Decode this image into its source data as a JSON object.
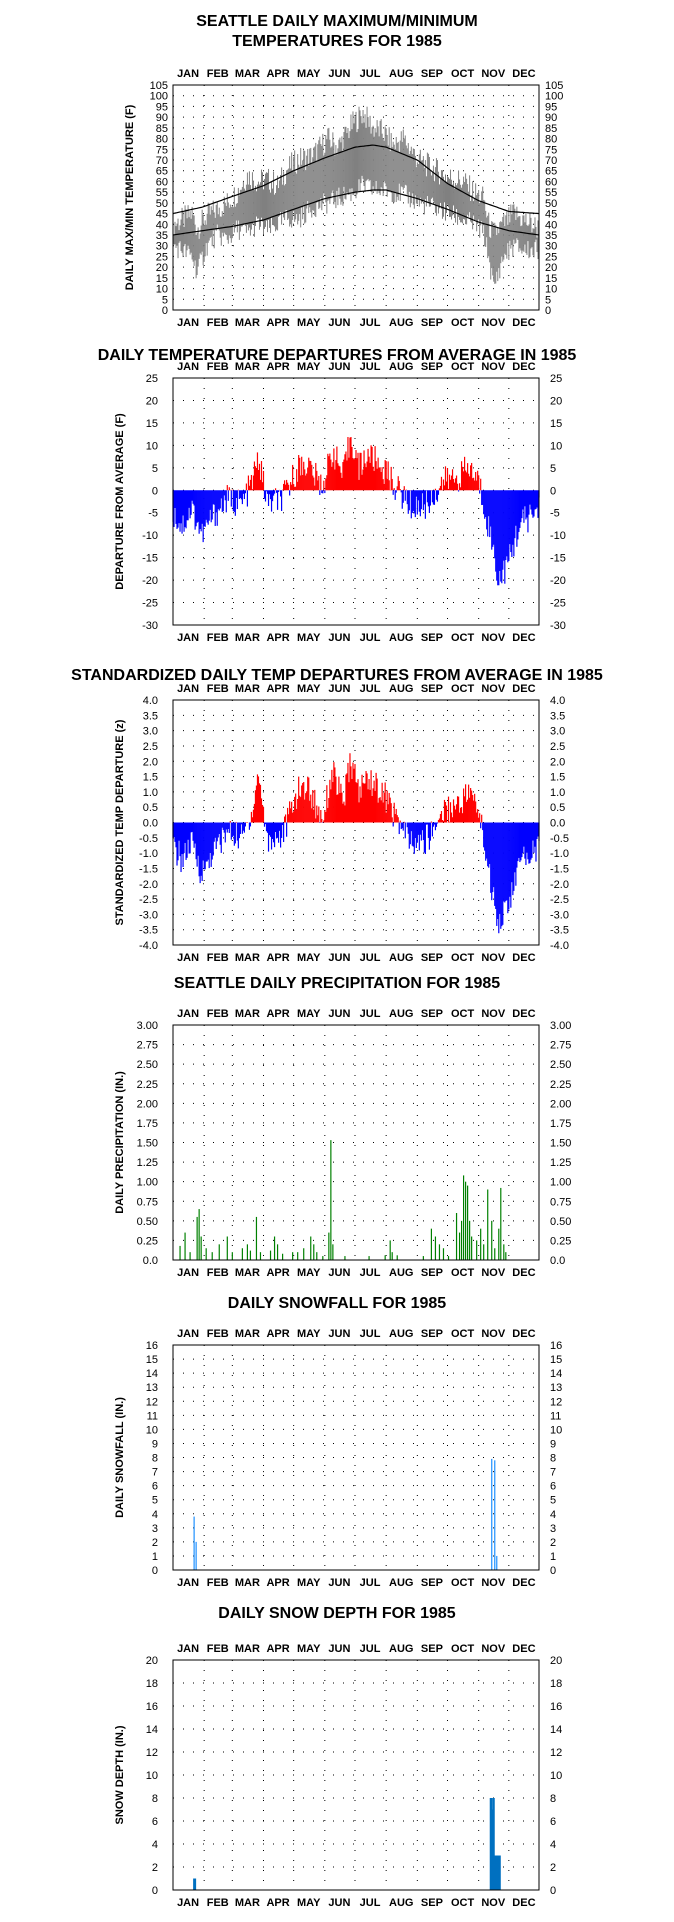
{
  "chart_data": [
    {
      "id": "maxmin",
      "type": "area",
      "title_lines": [
        "SEATTLE DAILY MAXIMUM/MINIMUM",
        "TEMPERATURES FOR 1985"
      ],
      "ylabel": "DAILY MAX/MIN TEMPERATURE (F)",
      "months": [
        "JAN",
        "FEB",
        "MAR",
        "APR",
        "MAY",
        "JUN",
        "JUL",
        "AUG",
        "SEP",
        "OCT",
        "NOV",
        "DEC"
      ],
      "ylim": [
        0,
        105
      ],
      "yticks": [
        "0",
        "5",
        "10",
        "15",
        "20",
        "25",
        "30",
        "35",
        "40",
        "45",
        "50",
        "55",
        "60",
        "65",
        "70",
        "75",
        "80",
        "85",
        "90",
        "95",
        "100",
        "105"
      ],
      "grid": true,
      "colors": {
        "observed": "#808080",
        "normal": "#000000"
      },
      "normal_max": {
        "day": [
          1,
          30,
          60,
          91,
          121,
          152,
          182,
          200,
          213,
          244,
          274,
          305,
          335,
          365
        ],
        "temp": [
          45,
          48,
          53,
          58,
          65,
          71,
          76,
          77,
          76,
          70,
          59,
          51,
          46,
          45
        ]
      },
      "normal_min": {
        "day": [
          1,
          30,
          60,
          91,
          121,
          152,
          182,
          200,
          213,
          244,
          274,
          305,
          335,
          365
        ],
        "temp": [
          35,
          37,
          39,
          42,
          47,
          52,
          55,
          56,
          56,
          52,
          47,
          41,
          37,
          35
        ]
      },
      "obs_max": {
        "day": [
          1,
          10,
          20,
          25,
          35,
          45,
          55,
          65,
          75,
          85,
          95,
          105,
          115,
          125,
          140,
          155,
          165,
          180,
          190,
          200,
          210,
          220,
          230,
          245,
          260,
          275,
          290,
          300,
          310,
          315,
          320,
          325,
          330,
          340,
          350,
          365
        ],
        "temp": [
          40,
          42,
          45,
          38,
          44,
          47,
          50,
          55,
          63,
          60,
          61,
          58,
          66,
          70,
          72,
          80,
          76,
          87,
          92,
          85,
          83,
          77,
          80,
          70,
          66,
          62,
          60,
          55,
          52,
          40,
          35,
          38,
          40,
          45,
          42,
          38
        ]
      },
      "obs_min": {
        "day": [
          1,
          10,
          20,
          25,
          35,
          45,
          55,
          65,
          75,
          85,
          95,
          105,
          115,
          125,
          140,
          155,
          165,
          180,
          190,
          200,
          210,
          220,
          230,
          245,
          260,
          275,
          290,
          300,
          310,
          315,
          320,
          325,
          330,
          340,
          350,
          365
        ],
        "temp": [
          30,
          28,
          25,
          18,
          30,
          35,
          33,
          38,
          36,
          40,
          37,
          40,
          43,
          42,
          48,
          50,
          52,
          55,
          58,
          56,
          56,
          55,
          54,
          50,
          48,
          45,
          42,
          40,
          36,
          25,
          10,
          18,
          25,
          30,
          28,
          28
        ]
      }
    },
    {
      "id": "departures",
      "type": "bar",
      "title_lines": [
        "DAILY TEMPERATURE DEPARTURES FROM AVERAGE IN 1985"
      ],
      "ylabel": "DEPARTURE FROM AVERAGE (F)",
      "months": [
        "JAN",
        "FEB",
        "MAR",
        "APR",
        "MAY",
        "JUN",
        "JUL",
        "AUG",
        "SEP",
        "OCT",
        "NOV",
        "DEC"
      ],
      "ylim": [
        -30,
        25
      ],
      "yticks": [
        "-30",
        "-25",
        "-20",
        "-15",
        "-10",
        "-5",
        "0",
        "5",
        "10",
        "15",
        "20",
        "25"
      ],
      "grid": true,
      "colors": {
        "positive": "#ff0000",
        "negative": "#0000ff"
      },
      "anchor_day": [
        1,
        10,
        20,
        30,
        40,
        55,
        70,
        80,
        86,
        95,
        110,
        125,
        135,
        145,
        150,
        160,
        170,
        178,
        186,
        195,
        205,
        213,
        225,
        240,
        255,
        270,
        285,
        295,
        305,
        315,
        320,
        325,
        335,
        345,
        355,
        365
      ],
      "anchor_value": [
        -5,
        -8,
        -4,
        -10,
        -6,
        -2,
        -3,
        2,
        7,
        -3,
        -2,
        5,
        6,
        2,
        1,
        9,
        3,
        12,
        5,
        8,
        6,
        4,
        0,
        -4,
        -3,
        2,
        3,
        5,
        2,
        -8,
        -14,
        -20,
        -16,
        -8,
        -6,
        -4
      ]
    },
    {
      "id": "std_departures",
      "type": "bar",
      "title_lines": [
        "STANDARDIZED DAILY TEMP DEPARTURES FROM AVERAGE IN 1985"
      ],
      "ylabel": "STANDARDIZED TEMP DEPARTURE (z)",
      "months": [
        "JAN",
        "FEB",
        "MAR",
        "APR",
        "MAY",
        "JUN",
        "JUL",
        "AUG",
        "SEP",
        "OCT",
        "NOV",
        "DEC"
      ],
      "ylim": [
        -4,
        4
      ],
      "yticks": [
        "-4.0",
        "-3.5",
        "-3.0",
        "-2.5",
        "-2.0",
        "-1.5",
        "-1.0",
        "-0.5",
        "0.0",
        "0.5",
        "1.0",
        "1.5",
        "2.0",
        "2.5",
        "3.0",
        "3.5",
        "4.0"
      ],
      "grid": true,
      "colors": {
        "positive": "#ff0000",
        "negative": "#0000ff"
      },
      "anchor_day": [
        1,
        10,
        20,
        30,
        40,
        55,
        70,
        80,
        86,
        95,
        110,
        125,
        135,
        145,
        150,
        160,
        170,
        178,
        186,
        195,
        205,
        213,
        225,
        240,
        255,
        270,
        285,
        295,
        305,
        315,
        320,
        325,
        335,
        345,
        355,
        365
      ],
      "anchor_value": [
        -0.8,
        -1.2,
        -0.7,
        -1.7,
        -1.0,
        -0.3,
        -0.5,
        0.4,
        1.6,
        -0.6,
        -0.4,
        1.0,
        1.2,
        0.4,
        0.2,
        1.7,
        0.6,
        2.0,
        1.0,
        1.5,
        1.1,
        0.8,
        0.0,
        -0.8,
        -0.5,
        0.4,
        0.6,
        1.0,
        0.4,
        -1.5,
        -2.5,
        -3.2,
        -2.7,
        -1.4,
        -1.0,
        -0.8
      ]
    },
    {
      "id": "precip",
      "type": "bar",
      "title_lines": [
        "SEATTLE DAILY PRECIPITATION FOR 1985"
      ],
      "ylabel": "DAILY PRECIPITATION (IN.)",
      "months": [
        "JAN",
        "FEB",
        "MAR",
        "APR",
        "MAY",
        "JUN",
        "JUL",
        "AUG",
        "SEP",
        "OCT",
        "NOV",
        "DEC"
      ],
      "ylim": [
        0,
        3
      ],
      "yticks": [
        "0.0",
        "0.25",
        "0.50",
        "0.75",
        "1.00",
        "1.25",
        "1.50",
        "1.75",
        "2.00",
        "2.25",
        "2.50",
        "2.75",
        "3.00"
      ],
      "grid": true,
      "colors": {
        "bars": "#008000"
      },
      "events": [
        {
          "day": 8,
          "value": 0.18
        },
        {
          "day": 13,
          "value": 0.35
        },
        {
          "day": 18,
          "value": 0.1
        },
        {
          "day": 25,
          "value": 0.55
        },
        {
          "day": 27,
          "value": 0.65
        },
        {
          "day": 29,
          "value": 0.3
        },
        {
          "day": 34,
          "value": 0.15
        },
        {
          "day": 40,
          "value": 0.1
        },
        {
          "day": 47,
          "value": 0.2
        },
        {
          "day": 55,
          "value": 0.3
        },
        {
          "day": 60,
          "value": 0.1
        },
        {
          "day": 70,
          "value": 0.15
        },
        {
          "day": 75,
          "value": 0.2
        },
        {
          "day": 78,
          "value": 0.12
        },
        {
          "day": 84,
          "value": 0.55
        },
        {
          "day": 88,
          "value": 0.1
        },
        {
          "day": 98,
          "value": 0.12
        },
        {
          "day": 102,
          "value": 0.3
        },
        {
          "day": 105,
          "value": 0.2
        },
        {
          "day": 110,
          "value": 0.08
        },
        {
          "day": 120,
          "value": 0.1
        },
        {
          "day": 125,
          "value": 0.1
        },
        {
          "day": 131,
          "value": 0.15
        },
        {
          "day": 138,
          "value": 0.3
        },
        {
          "day": 141,
          "value": 0.2
        },
        {
          "day": 144,
          "value": 0.1
        },
        {
          "day": 150,
          "value": 0.05
        },
        {
          "day": 156,
          "value": 0.35
        },
        {
          "day": 158,
          "value": 1.53
        },
        {
          "day": 160,
          "value": 0.2
        },
        {
          "day": 172,
          "value": 0.05
        },
        {
          "day": 196,
          "value": 0.05
        },
        {
          "day": 212,
          "value": 0.06
        },
        {
          "day": 217,
          "value": 0.25
        },
        {
          "day": 219,
          "value": 0.1
        },
        {
          "day": 224,
          "value": 0.06
        },
        {
          "day": 250,
          "value": 0.05
        },
        {
          "day": 258,
          "value": 0.4
        },
        {
          "day": 262,
          "value": 0.3
        },
        {
          "day": 266,
          "value": 0.2
        },
        {
          "day": 270,
          "value": 0.15
        },
        {
          "day": 275,
          "value": 0.05
        },
        {
          "day": 283,
          "value": 0.6
        },
        {
          "day": 286,
          "value": 0.35
        },
        {
          "day": 288,
          "value": 0.5
        },
        {
          "day": 290,
          "value": 1.08
        },
        {
          "day": 292,
          "value": 1.0
        },
        {
          "day": 294,
          "value": 0.95
        },
        {
          "day": 296,
          "value": 0.5
        },
        {
          "day": 298,
          "value": 0.3
        },
        {
          "day": 303,
          "value": 0.25
        },
        {
          "day": 307,
          "value": 0.4
        },
        {
          "day": 310,
          "value": 0.2
        },
        {
          "day": 314,
          "value": 0.9
        },
        {
          "day": 318,
          "value": 0.5
        },
        {
          "day": 321,
          "value": 0.15
        },
        {
          "day": 325,
          "value": 0.4
        },
        {
          "day": 327,
          "value": 0.92
        },
        {
          "day": 330,
          "value": 0.2
        },
        {
          "day": 332,
          "value": 0.1
        }
      ]
    },
    {
      "id": "snowfall",
      "type": "bar",
      "title_lines": [
        "DAILY SNOWFALL FOR 1985"
      ],
      "ylabel": "DAILY SNOWFALL (IN.)",
      "months": [
        "JAN",
        "FEB",
        "MAR",
        "APR",
        "MAY",
        "JUN",
        "JUL",
        "AUG",
        "SEP",
        "OCT",
        "NOV",
        "DEC"
      ],
      "ylim": [
        0,
        16
      ],
      "yticks": [
        "0",
        "1",
        "2",
        "3",
        "4",
        "5",
        "6",
        "7",
        "8",
        "9",
        "10",
        "11",
        "12",
        "13",
        "14",
        "15",
        "16"
      ],
      "grid": true,
      "colors": {
        "bars": "#1e90ff"
      },
      "events": [
        {
          "day": 22,
          "value": 3.8
        },
        {
          "day": 24,
          "value": 2.0
        },
        {
          "day": 318,
          "value": 7.9
        },
        {
          "day": 321,
          "value": 7.8
        },
        {
          "day": 323,
          "value": 1.0
        }
      ]
    },
    {
      "id": "snowdepth",
      "type": "bar",
      "title_lines": [
        "DAILY SNOW DEPTH FOR 1985"
      ],
      "ylabel": "SNOW DEPTH (IN.)",
      "months": [
        "JAN",
        "FEB",
        "MAR",
        "APR",
        "MAY",
        "JUN",
        "JUL",
        "AUG",
        "SEP",
        "OCT",
        "NOV",
        "DEC"
      ],
      "ylim": [
        0,
        20
      ],
      "yticks": [
        "0",
        "2",
        "4",
        "6",
        "8",
        "10",
        "12",
        "14",
        "16",
        "18",
        "20"
      ],
      "grid": true,
      "colors": {
        "bars": "#0070c0"
      },
      "events": [
        {
          "day": 22,
          "value": 1
        },
        {
          "day": 23,
          "value": 1
        },
        {
          "day": 317,
          "value": 8
        },
        {
          "day": 318,
          "value": 8
        },
        {
          "day": 319,
          "value": 7
        },
        {
          "day": 320,
          "value": 8
        },
        {
          "day": 321,
          "value": 3
        },
        {
          "day": 322,
          "value": 3
        },
        {
          "day": 323,
          "value": 3
        },
        {
          "day": 324,
          "value": 3
        },
        {
          "day": 325,
          "value": 3
        },
        {
          "day": 326,
          "value": 3
        }
      ]
    }
  ]
}
